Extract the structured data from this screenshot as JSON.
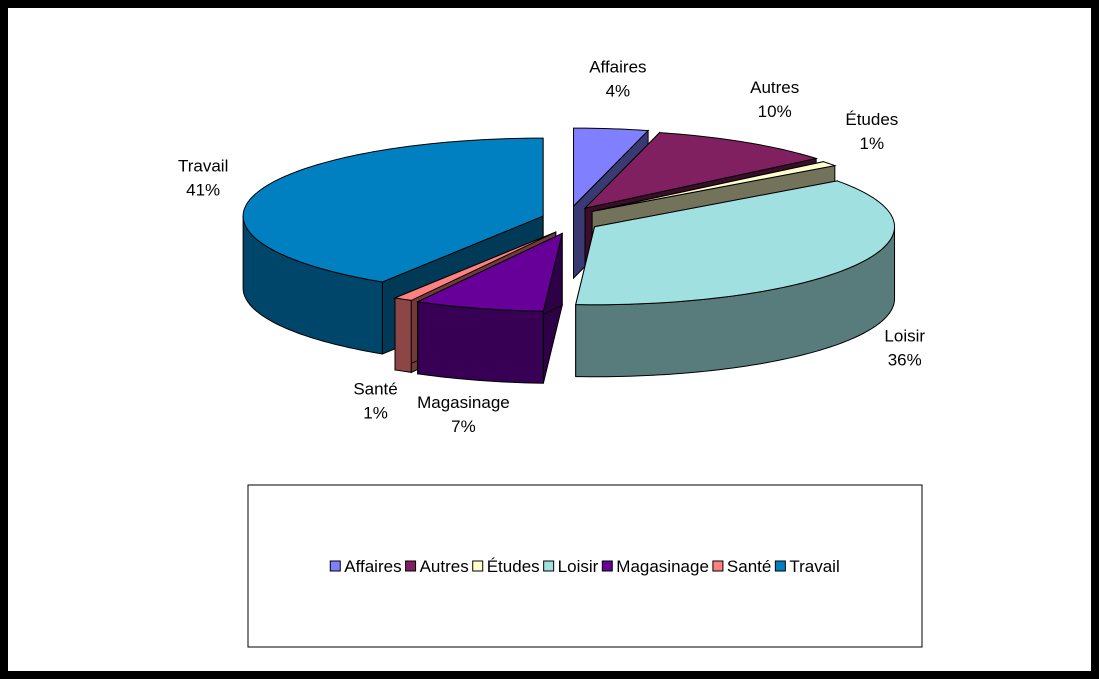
{
  "chart_data": {
    "type": "pie3d",
    "categories": [
      "Affaires",
      "Autres",
      "Études",
      "Loisir",
      "Magasinage",
      "Santé",
      "Travail"
    ],
    "values": [
      4,
      10,
      1,
      36,
      7,
      1,
      41
    ],
    "value_labels": [
      "4%",
      "10%",
      "1%",
      "36%",
      "7%",
      "1%",
      "41%"
    ],
    "colors": [
      "#8080ff",
      "#802060",
      "#ffffcc",
      "#a0e0e0",
      "#660099",
      "#ff8080",
      "#0080c0"
    ],
    "legend": "bottom"
  }
}
